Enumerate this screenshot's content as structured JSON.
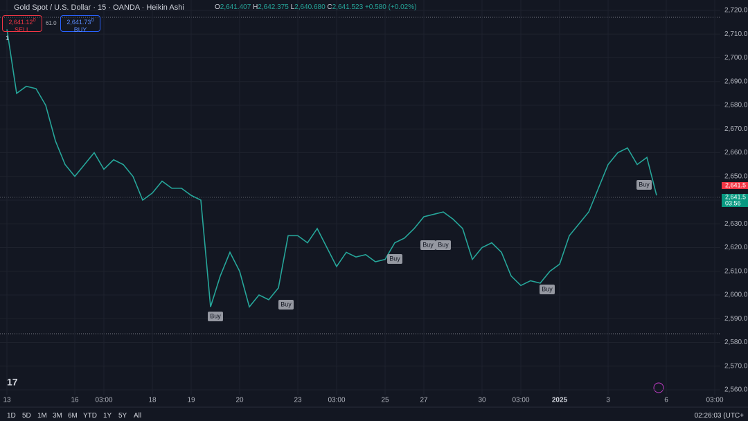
{
  "symbol": "Gold Spot / U.S. Dollar · 15 · OANDA · Heikin Ashi",
  "ohlc": {
    "o_label": "O",
    "o": "2,641.407",
    "h_label": " H",
    "h": "2,642.375",
    "l_label": " L",
    "l": "2,640.680",
    "c_label": " C",
    "c": "2,641.523",
    "change": " +0.580 (+0.02%)"
  },
  "trade": {
    "sell_price": "2,641.12",
    "sell_pip": "0",
    "sell_label": "SELL",
    "spread": "61.0",
    "buy_price": "2,641.73",
    "buy_pip": "0",
    "buy_label": "BUY",
    "position": "1"
  },
  "price_labels": [
    "2,641.5",
    "2,641.5",
    "03:56"
  ],
  "toolbar": [
    "1D",
    "5D",
    "1M",
    "3M",
    "6M",
    "YTD",
    "1Y",
    "5Y",
    "All"
  ],
  "clock": "02:26:03 (UTC+",
  "chart_data": {
    "type": "line",
    "categories": [
      "13",
      null,
      null,
      null,
      null,
      null,
      null,
      "16",
      null,
      null,
      "03:00",
      null,
      null,
      null,
      null,
      "18",
      null,
      null,
      null,
      "19",
      null,
      null,
      null,
      null,
      "20",
      null,
      null,
      null,
      null,
      null,
      "23",
      null,
      null,
      null,
      "03:00",
      null,
      null,
      null,
      null,
      "25",
      null,
      null,
      null,
      "27",
      null,
      null,
      null,
      null,
      null,
      "30",
      null,
      null,
      null,
      "03:00",
      null,
      null,
      null,
      "2025",
      null,
      null,
      null,
      null,
      "3",
      null,
      null,
      null,
      null,
      null,
      "6",
      null,
      null,
      null,
      null,
      "03:00"
    ],
    "series": [
      {
        "name": "XAUUSD",
        "color": "#26a69a",
        "values": [
          2712,
          2685,
          2688,
          2687,
          2680,
          2665,
          2655,
          2650,
          2655,
          2660,
          2653,
          2657,
          2655,
          2650,
          2640,
          2643,
          2648,
          2645,
          2645,
          2642,
          2640,
          2595,
          2608,
          2618,
          2610,
          2595,
          2600,
          2598,
          2603,
          2625,
          2625,
          2622,
          2628,
          2620,
          2612,
          2618,
          2616,
          2617,
          2614,
          2615,
          2622,
          2624,
          2628,
          2633,
          2634,
          2635,
          2632,
          2628,
          2615,
          2620,
          2622,
          2618,
          2608,
          2604,
          2606,
          2605,
          2610,
          2613,
          2625,
          2630,
          2635,
          2645,
          2655,
          2660,
          2662,
          2655,
          2658,
          2642,
          null,
          null,
          null,
          null,
          null,
          null
        ]
      }
    ],
    "annotations": [
      "Buy",
      "Buy",
      "Buy",
      "Buy",
      "Buy",
      "Buy",
      "Buy"
    ],
    "ylim": [
      2560,
      2720
    ],
    "yticks": [
      {
        "value": 2560,
        "label": "2,560.0"
      },
      {
        "value": 2570,
        "label": "2,570.0"
      },
      {
        "value": 2580,
        "label": "2,580.0"
      },
      {
        "value": 2590,
        "label": "2,590.0"
      },
      {
        "value": 2600,
        "label": "2,600.0"
      },
      {
        "value": 2610,
        "label": "2,610.0"
      },
      {
        "value": 2620,
        "label": "2,620.0"
      },
      {
        "value": 2630,
        "label": "2,630.0"
      },
      {
        "value": 2640,
        "label": "2,640.0"
      },
      {
        "value": 2650,
        "label": "2,650.0"
      },
      {
        "value": 2660,
        "label": "2,660.0"
      },
      {
        "value": 2670,
        "label": "2,670.0"
      },
      {
        "value": 2680,
        "label": "2,680.0"
      },
      {
        "value": 2690,
        "label": "2,690.0"
      },
      {
        "value": 2700,
        "label": "2,700.0"
      },
      {
        "value": 2710,
        "label": "2,710.0"
      },
      {
        "value": 2720,
        "label": "2,720.0"
      }
    ],
    "grid": true
  }
}
